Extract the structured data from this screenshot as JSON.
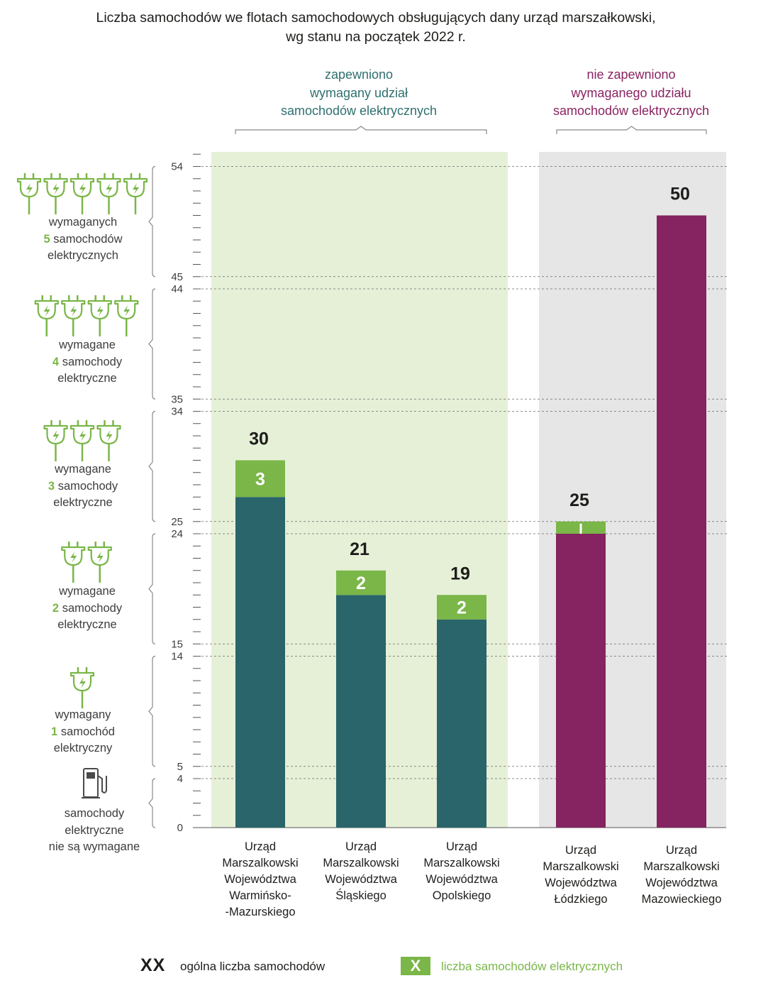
{
  "title_lines": [
    "Liczba samochodów we flotach samochodowych obsługujących dany urząd marszałkowski,",
    "wg stanu na początek 2022 r."
  ],
  "groups": {
    "met": {
      "lines": [
        "zapewniono",
        "wymagany udział",
        "samochodów elektrycznych"
      ],
      "color": "#2f6f6f"
    },
    "not_met": {
      "lines": [
        "nie zapewniono",
        "wymaganego udziału",
        "samochodów elektrycznych"
      ],
      "color": "#8a2462"
    }
  },
  "tiers": [
    {
      "icon": "fuel-pump-icon",
      "plugs": 0,
      "pre": "samochody",
      "num": "",
      "word": "elektryczne",
      "post": "nie są wymagane"
    },
    {
      "icon": "plug-icon",
      "plugs": 1,
      "pre": "wymagany",
      "num": "1",
      "word": "samochód",
      "post": "elektryczny"
    },
    {
      "icon": "plug-icon",
      "plugs": 2,
      "pre": "wymagane",
      "num": "2",
      "word": "samochody",
      "post": "elektryczne"
    },
    {
      "icon": "plug-icon",
      "plugs": 3,
      "pre": "wymagane",
      "num": "3",
      "word": "samochody",
      "post": "elektryczne"
    },
    {
      "icon": "plug-icon",
      "plugs": 4,
      "pre": "wymagane",
      "num": "4",
      "word": "samochody",
      "post": "elektryczne"
    },
    {
      "icon": "plug-icon",
      "plugs": 5,
      "pre": "wymaganych",
      "num": "5",
      "word": "samochodów",
      "post": "elektrycznych"
    }
  ],
  "legend": {
    "total_mark": "XX",
    "total_label": "ogólna liczba samochodów",
    "ev_mark": "X",
    "ev_label": "liczba samochodów elektrycznych"
  },
  "colors": {
    "green_bg": "#e6f0d7",
    "grey_bg": "#e6e6e6",
    "teal": "#29656a",
    "purple": "#852460",
    "ev_green": "#7ab648"
  },
  "chart_data": {
    "type": "bar",
    "stacked": true,
    "ylim": [
      0,
      55
    ],
    "yticks_labeled": [
      0,
      4,
      5,
      14,
      15,
      24,
      25,
      34,
      35,
      44,
      45,
      54
    ],
    "categories": [
      [
        "Urząd",
        "Marszalkowski",
        "Województwa",
        "Warmińsko-",
        "-Mazurskiego"
      ],
      [
        "Urząd",
        "Marszalkowski",
        "Województwa",
        "Śląskiego"
      ],
      [
        "Urząd",
        "Marszalkowski",
        "Województwa",
        "Opolskiego"
      ],
      [
        "Urząd",
        "Marszalkowski",
        "Województwa",
        "Łódzkiego"
      ],
      [
        "Urząd",
        "Marszalkowski",
        "Województwa",
        "Mazowieckiego"
      ]
    ],
    "totals": [
      30,
      21,
      19,
      25,
      50
    ],
    "ev": [
      3,
      2,
      2,
      1,
      0
    ],
    "ev_labels": [
      "3",
      "2",
      "2",
      "",
      ""
    ],
    "group": [
      "met",
      "met",
      "met",
      "not_met",
      "not_met"
    ]
  }
}
